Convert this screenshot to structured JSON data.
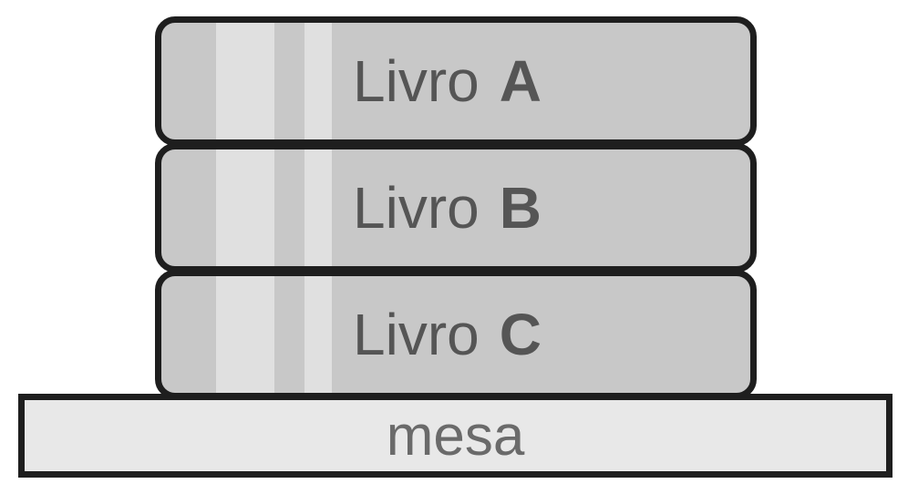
{
  "books": [
    {
      "word": "Livro",
      "letter": "A"
    },
    {
      "word": "Livro",
      "letter": "B"
    },
    {
      "word": "Livro",
      "letter": "C"
    }
  ],
  "table": {
    "label": "mesa"
  },
  "colors": {
    "book_fill": "#c8c8c8",
    "stripe": "#e0e0e0",
    "border": "#1e1e1e",
    "table_fill": "#e8e8e8",
    "text": "#555555"
  }
}
